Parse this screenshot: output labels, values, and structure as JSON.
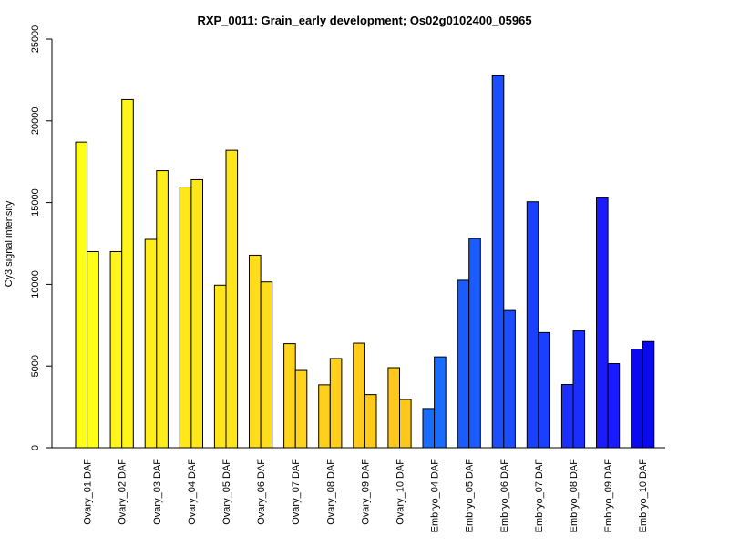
{
  "chart_data": {
    "type": "bar",
    "title": "RXP_0011: Grain_early development; Os02g0102400_05965",
    "xlabel": "",
    "ylabel": "Cy3 signal intensity",
    "ylim": [
      0,
      25000
    ],
    "yticks": [
      0,
      5000,
      10000,
      15000,
      20000,
      25000
    ],
    "grid": false,
    "legend": "none",
    "categories": [
      "Ovary_01 DAF",
      "Ovary_02 DAF",
      "Ovary_03 DAF",
      "Ovary_04 DAF",
      "Ovary_05 DAF",
      "Ovary_06 DAF",
      "Ovary_07 DAF",
      "Ovary_08 DAF",
      "Ovary_09 DAF",
      "Ovary_10 DAF",
      "Embryo_04 DAF",
      "Embryo_05 DAF",
      "Embryo_06 DAF",
      "Embryo_07 DAF",
      "Embryo_08 DAF",
      "Embryo_09 DAF",
      "Embryo_10 DAF"
    ],
    "series": [
      {
        "values": [
          18700,
          12000,
          12750,
          15950,
          9950,
          11780,
          6370,
          3850,
          6400,
          4900,
          2400,
          10250,
          22800,
          15050,
          3870,
          15300,
          6040
        ]
      },
      {
        "values": [
          12000,
          21300,
          16950,
          16400,
          18200,
          10150,
          4730,
          5460,
          3250,
          2950,
          5560,
          12800,
          8400,
          7050,
          7150,
          5150,
          6500
        ]
      }
    ],
    "colors": [
      "#ffff16",
      "#fff51a",
      "#ffee1a",
      "#ffe71a",
      "#ffe51a",
      "#ffdd1a",
      "#ffd41a",
      "#ffcf1a",
      "#ffca1a",
      "#ffc71a",
      "#1a6bff",
      "#1a5cff",
      "#1a4eff",
      "#1a3fff",
      "#1a2fff",
      "#1a1cff",
      "#0a0af0"
    ]
  }
}
